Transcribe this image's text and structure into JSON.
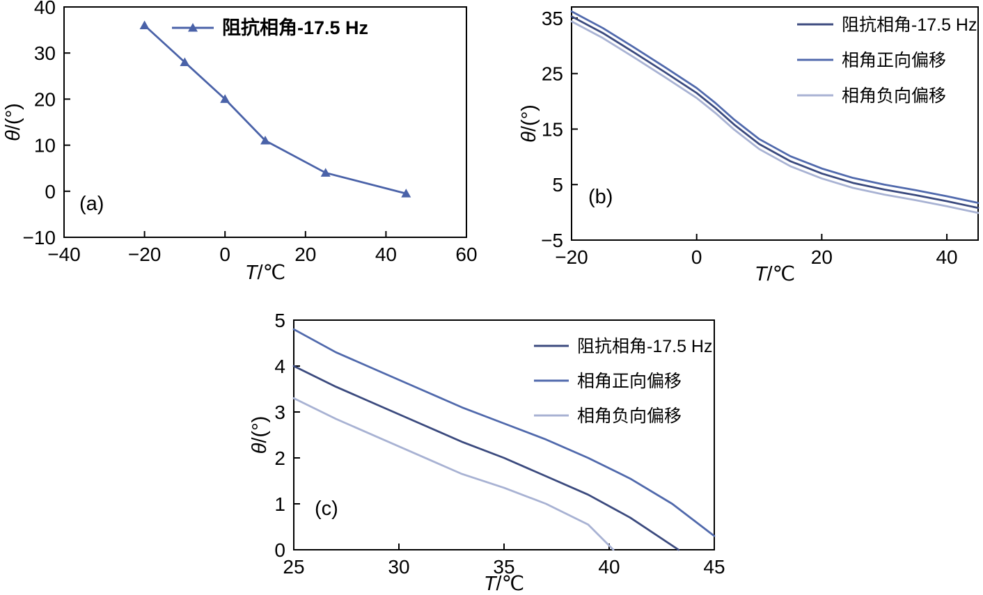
{
  "page": {
    "background": "#ffffff",
    "description": "Three-panel line chart figure: impedance phase angle vs temperature"
  },
  "series_colors": {
    "dark_blue": "#3b4a7e",
    "medium_blue": "#5069ac",
    "light_blue": "#a8b2d3",
    "panel_a_blue": "#4a62a8",
    "axis": "#000000"
  },
  "chart_data": [
    {
      "id": "a",
      "type": "line",
      "panel_label": "(a)",
      "xlabel": "T/℃",
      "ylabel": "θ/(°)",
      "xlim": [
        -40,
        60
      ],
      "xticks": [
        -40,
        -20,
        0,
        20,
        40,
        60
      ],
      "ylim": [
        -10,
        40
      ],
      "yticks": [
        -10,
        0,
        10,
        20,
        30,
        40
      ],
      "grid": false,
      "legend_position": "top-center-inside",
      "series": [
        {
          "name": "阻抗相角-17.5 Hz",
          "color_key": "panel_a_blue",
          "marker": "triangle",
          "x": [
            -20,
            -10,
            0,
            10,
            25,
            45
          ],
          "y": [
            36,
            28,
            20,
            11,
            4,
            -0.5
          ]
        }
      ]
    },
    {
      "id": "b",
      "type": "line",
      "panel_label": "(b)",
      "xlabel": "T/℃",
      "ylabel": "θ/(°)",
      "xlim": [
        -20,
        45
      ],
      "xticks": [
        -20,
        0,
        20,
        40
      ],
      "ylim": [
        -5,
        37
      ],
      "yticks": [
        -5,
        5,
        15,
        25,
        35
      ],
      "grid": false,
      "legend_position": "top-right-inside",
      "series": [
        {
          "name": "阻抗相角-17.5 Hz",
          "color_key": "dark_blue",
          "marker": "none",
          "x": [
            -20,
            -15,
            -10,
            -5,
            0,
            3,
            6,
            10,
            15,
            20,
            25,
            30,
            35,
            40,
            45
          ],
          "y": [
            35.3,
            32.3,
            28.8,
            25.2,
            21.5,
            18.8,
            15.8,
            12.3,
            9.2,
            7.0,
            5.3,
            4.1,
            3.1,
            2.0,
            0.8
          ]
        },
        {
          "name": "相角正向偏移",
          "color_key": "medium_blue",
          "marker": "none",
          "x": [
            -20,
            -15,
            -10,
            -5,
            0,
            3,
            6,
            10,
            15,
            20,
            25,
            30,
            35,
            40,
            45
          ],
          "y": [
            36.2,
            33.2,
            29.7,
            26.1,
            22.4,
            19.7,
            16.7,
            13.2,
            10.1,
            7.9,
            6.2,
            5.0,
            4.0,
            2.9,
            1.7
          ]
        },
        {
          "name": "相角负向偏移",
          "color_key": "light_blue",
          "marker": "none",
          "x": [
            -20,
            -15,
            -10,
            -5,
            0,
            3,
            6,
            10,
            15,
            20,
            25,
            30,
            35,
            40,
            45
          ],
          "y": [
            34.4,
            31.4,
            27.9,
            24.3,
            20.6,
            17.9,
            14.9,
            11.4,
            8.3,
            6.1,
            4.4,
            3.2,
            2.2,
            1.1,
            -0.1
          ]
        }
      ]
    },
    {
      "id": "c",
      "type": "line",
      "panel_label": "(c)",
      "xlabel": "T/℃",
      "ylabel": "θ/(°)",
      "xlim": [
        25,
        45
      ],
      "xticks": [
        25,
        30,
        35,
        40,
        45
      ],
      "ylim": [
        0,
        5
      ],
      "yticks": [
        0,
        1,
        2,
        3,
        4,
        5
      ],
      "grid": false,
      "legend_position": "top-right-inside",
      "series": [
        {
          "name": "阻抗相角-17.5 Hz",
          "color_key": "dark_blue",
          "marker": "none",
          "x": [
            25,
            27,
            29,
            31,
            33,
            35,
            37,
            39,
            41,
            43.3
          ],
          "y": [
            4.0,
            3.55,
            3.15,
            2.75,
            2.35,
            2.0,
            1.6,
            1.2,
            0.7,
            0.0
          ]
        },
        {
          "name": "相角正向偏移",
          "color_key": "medium_blue",
          "marker": "none",
          "x": [
            25,
            27,
            29,
            31,
            33,
            35,
            37,
            39,
            41,
            43,
            45
          ],
          "y": [
            4.8,
            4.3,
            3.9,
            3.5,
            3.1,
            2.75,
            2.4,
            2.0,
            1.55,
            1.0,
            0.3
          ]
        },
        {
          "name": "相角负向偏移",
          "color_key": "light_blue",
          "marker": "none",
          "x": [
            25,
            27,
            29,
            31,
            33,
            35,
            37,
            39,
            40.2
          ],
          "y": [
            3.3,
            2.85,
            2.45,
            2.05,
            1.65,
            1.35,
            1.0,
            0.55,
            0.0
          ]
        }
      ]
    }
  ]
}
